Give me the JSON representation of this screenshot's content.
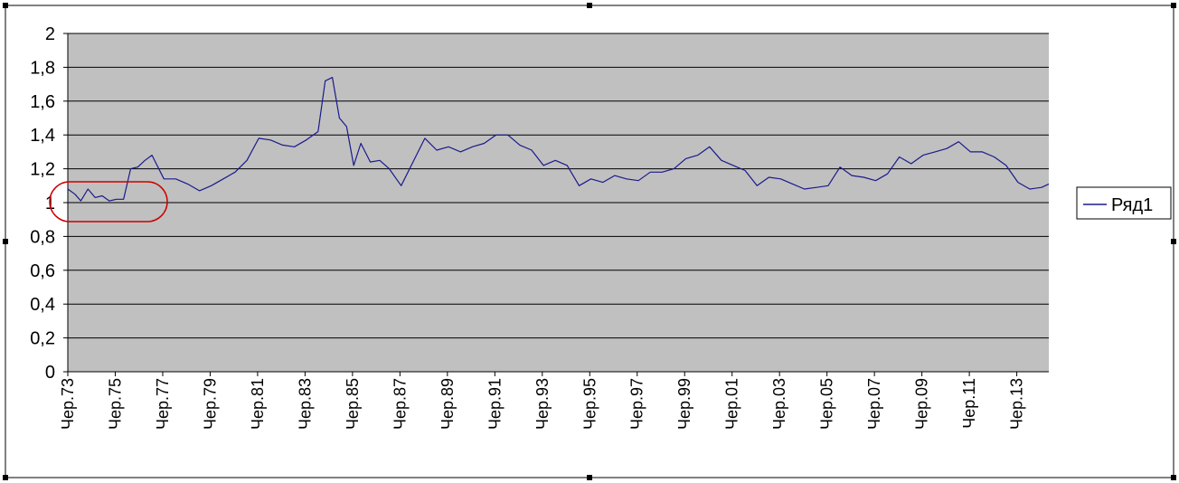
{
  "chart_data": {
    "type": "line",
    "title": "",
    "xlabel": "",
    "ylabel": "",
    "ylim": [
      0,
      2
    ],
    "yticks": [
      "0",
      "0,2",
      "0,4",
      "0,6",
      "0,8",
      "1",
      "1,2",
      "1,4",
      "1,6",
      "1,8",
      "2"
    ],
    "xticks": [
      "Чер.73",
      "Чер.75",
      "Чер.77",
      "Чер.79",
      "Чер.81",
      "Чер.83",
      "Чер.85",
      "Чер.87",
      "Чер.89",
      "Чер.91",
      "Чер.93",
      "Чер.95",
      "Чер.97",
      "Чер.99",
      "Чер.01",
      "Чер.03",
      "Чер.05",
      "Чер.07",
      "Чер.09",
      "Чер.11",
      "Чер.13"
    ],
    "xlim": [
      1973.45,
      2014.8
    ],
    "grid": true,
    "legend_position": "right",
    "series": [
      {
        "name": "Ряд1",
        "color": "#1a1a8c",
        "x": [
          1973.45,
          1973.75,
          1974.0,
          1974.3,
          1974.6,
          1974.9,
          1975.2,
          1975.5,
          1975.8,
          1976.1,
          1976.4,
          1976.7,
          1977.0,
          1977.5,
          1978.0,
          1978.5,
          1979.0,
          1979.5,
          1980.0,
          1980.5,
          1981.0,
          1981.5,
          1982.0,
          1982.5,
          1983.0,
          1983.5,
          1984.0,
          1984.3,
          1984.6,
          1984.9,
          1985.2,
          1985.5,
          1985.8,
          1986.2,
          1986.6,
          1987.0,
          1987.5,
          1988.0,
          1988.5,
          1989.0,
          1989.5,
          1990.0,
          1990.5,
          1991.0,
          1991.5,
          1992.0,
          1992.5,
          1993.0,
          1993.5,
          1994.0,
          1994.5,
          1995.0,
          1995.5,
          1996.0,
          1996.5,
          1997.0,
          1997.5,
          1998.0,
          1998.5,
          1999.0,
          1999.5,
          2000.0,
          2000.5,
          2001.0,
          2001.5,
          2002.0,
          2002.5,
          2003.0,
          2003.5,
          2004.0,
          2004.5,
          2005.0,
          2005.5,
          2006.0,
          2006.5,
          2007.0,
          2007.5,
          2008.0,
          2008.5,
          2009.0,
          2009.5,
          2010.0,
          2010.5,
          2011.0,
          2011.5,
          2012.0,
          2012.5,
          2013.0,
          2013.5,
          2014.0,
          2014.5,
          2014.8
        ],
        "values": [
          1.08,
          1.05,
          1.01,
          1.08,
          1.03,
          1.04,
          1.01,
          1.02,
          1.02,
          1.2,
          1.21,
          1.25,
          1.28,
          1.14,
          1.14,
          1.11,
          1.07,
          1.1,
          1.14,
          1.18,
          1.25,
          1.38,
          1.37,
          1.34,
          1.33,
          1.37,
          1.42,
          1.72,
          1.74,
          1.5,
          1.45,
          1.22,
          1.35,
          1.24,
          1.25,
          1.2,
          1.1,
          1.24,
          1.38,
          1.31,
          1.33,
          1.3,
          1.33,
          1.35,
          1.4,
          1.4,
          1.34,
          1.31,
          1.22,
          1.25,
          1.22,
          1.1,
          1.14,
          1.12,
          1.16,
          1.14,
          1.13,
          1.18,
          1.18,
          1.2,
          1.26,
          1.28,
          1.33,
          1.25,
          1.22,
          1.19,
          1.1,
          1.15,
          1.14,
          1.11,
          1.08,
          1.09,
          1.1,
          1.21,
          1.16,
          1.15,
          1.13,
          1.17,
          1.27,
          1.23,
          1.28,
          1.3,
          1.32,
          1.36,
          1.3,
          1.3,
          1.27,
          1.22,
          1.12,
          1.08,
          1.09,
          1.11
        ]
      }
    ]
  }
}
